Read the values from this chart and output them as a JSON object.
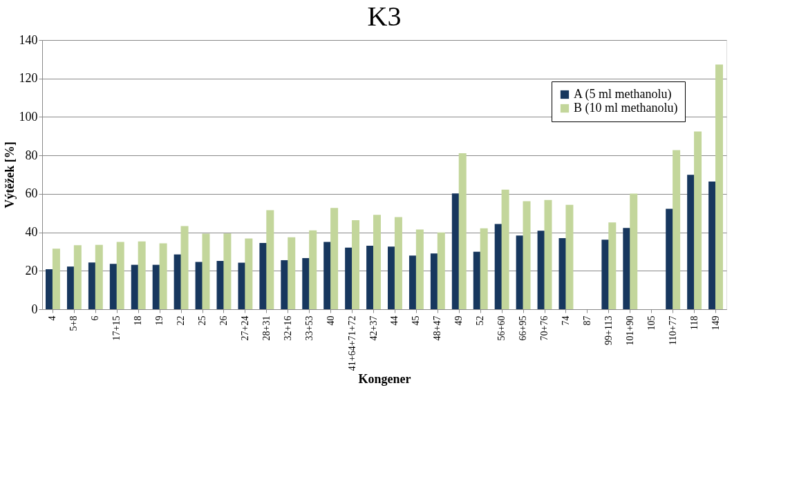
{
  "chart_data": {
    "type": "bar",
    "title": "K3",
    "xlabel": "Kongener",
    "ylabel": "Výtěžek [%]",
    "categories": [
      "4",
      "5+8",
      "6",
      "17+15",
      "18",
      "19",
      "22",
      "25",
      "26",
      "27+24",
      "28+31",
      "32+16",
      "33+53",
      "40",
      "41+64+71+72",
      "42+37",
      "44",
      "45",
      "48+47",
      "49",
      "52",
      "56+60",
      "66+95",
      "70+76",
      "74",
      "87",
      "99+113",
      "101+90",
      "105",
      "110+77",
      "118",
      "149"
    ],
    "series": [
      {
        "name": "A (5 ml methanolu)",
        "color": "#17375e",
        "values": [
          20.8,
          22.2,
          24.3,
          23.6,
          23.1,
          23.1,
          28.5,
          24.6,
          25.1,
          24.2,
          34.5,
          25.5,
          26.6,
          35,
          32,
          33,
          32.6,
          27.9,
          29,
          60.2,
          29.9,
          44.3,
          38.3,
          40.8,
          37,
          null,
          36.2,
          42.3,
          null,
          52.2,
          69.9,
          66.4
        ]
      },
      {
        "name": "B (10 ml methanolu)",
        "color": "#c3d69b",
        "values": [
          31.5,
          33.3,
          33.5,
          35,
          35.3,
          34.3,
          43.3,
          39.3,
          39.4,
          36.8,
          51.5,
          37.4,
          41,
          52.7,
          46.3,
          49.1,
          47.9,
          41.5,
          39.9,
          81.1,
          42.1,
          62.2,
          56.2,
          56.8,
          54.3,
          null,
          45.1,
          60.1,
          null,
          82.7,
          92.4,
          127.3
        ]
      }
    ],
    "ylim": [
      0,
      140
    ],
    "yticks": [
      0,
      20,
      40,
      60,
      80,
      100,
      120,
      140
    ],
    "grid": "y",
    "legend": "top right"
  }
}
